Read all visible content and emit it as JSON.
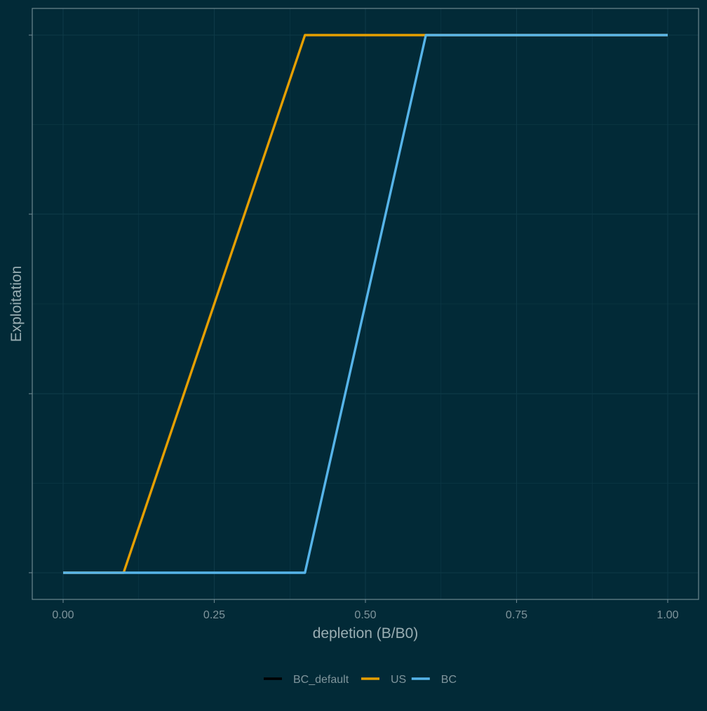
{
  "chart_data": {
    "type": "line",
    "title": "",
    "xlabel": "depletion (B/B0)",
    "ylabel": "Exploitation",
    "xlim": [
      0,
      1
    ],
    "ylim": [
      0,
      1
    ],
    "x_ticks": [
      0,
      0.25,
      0.5,
      0.75,
      1
    ],
    "x_tick_labels": [
      "0.00",
      "0.25",
      "0.50",
      "0.75",
      "1.00"
    ],
    "y_ticks": [
      0,
      0.333,
      0.667,
      1
    ],
    "y_tick_labels": [
      "",
      "",
      "",
      ""
    ],
    "grid": true,
    "legend_position": "bottom",
    "series": [
      {
        "name": "BC_default",
        "color": "#000000",
        "x": [],
        "y": []
      },
      {
        "name": "US",
        "color": "#e69f00",
        "x": [
          0,
          0.1,
          0.4,
          1.0
        ],
        "y": [
          0,
          0,
          1,
          1
        ]
      },
      {
        "name": "BC",
        "color": "#56b4e9",
        "x": [
          0,
          0.4,
          0.6,
          1.0
        ],
        "y": [
          0,
          0,
          1,
          1
        ]
      }
    ],
    "colors": {
      "background": "#022a37",
      "grid": "#0e3a47",
      "axis": "#6d8790",
      "text": "#7f959c",
      "label": "#9aaeb3"
    }
  }
}
